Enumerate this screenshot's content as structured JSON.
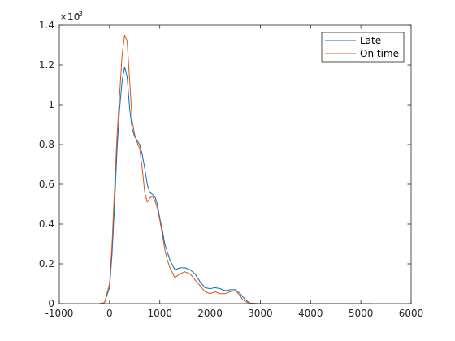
{
  "chart_data": {
    "type": "line",
    "title": "",
    "xlabel": "",
    "ylabel": "",
    "xlim": [
      -1000,
      6000
    ],
    "ylim": [
      0,
      0.0014
    ],
    "y_exponent_label": "×10",
    "y_exponent_power": "-3",
    "x_ticks": [
      {
        "value": -1000,
        "label": "-1000"
      },
      {
        "value": 0,
        "label": "0"
      },
      {
        "value": 1000,
        "label": "1000"
      },
      {
        "value": 2000,
        "label": "2000"
      },
      {
        "value": 3000,
        "label": "3000"
      },
      {
        "value": 4000,
        "label": "4000"
      },
      {
        "value": 5000,
        "label": "5000"
      },
      {
        "value": 6000,
        "label": "6000"
      }
    ],
    "y_ticks": [
      {
        "value": 0,
        "label": "0"
      },
      {
        "value": 0.0002,
        "label": "0.2"
      },
      {
        "value": 0.0004,
        "label": "0.4"
      },
      {
        "value": 0.0006,
        "label": "0.6"
      },
      {
        "value": 0.0008,
        "label": "0.8"
      },
      {
        "value": 0.001,
        "label": "1"
      },
      {
        "value": 0.0012,
        "label": "1.2"
      },
      {
        "value": 0.0014,
        "label": "1.4"
      }
    ],
    "grid": false,
    "legend_position": "top-right",
    "series": [
      {
        "name": "Late",
        "color": "#0072BD",
        "x": [
          -200,
          -100,
          0,
          50,
          100,
          150,
          200,
          250,
          300,
          350,
          400,
          450,
          500,
          550,
          600,
          650,
          700,
          750,
          800,
          850,
          900,
          950,
          1000,
          1050,
          1100,
          1150,
          1200,
          1300,
          1400,
          1500,
          1600,
          1700,
          1800,
          1900,
          2000,
          2100,
          2200,
          2300,
          2400,
          2500,
          2600,
          2650,
          2700,
          2750,
          2800,
          2900,
          3000,
          5200
        ],
        "y": [
          0,
          5e-06,
          8e-05,
          0.00025,
          0.0005,
          0.00078,
          0.00098,
          0.00112,
          0.00119,
          0.00114,
          0.00098,
          0.00088,
          0.00084,
          0.00082,
          0.0008,
          0.00075,
          0.00068,
          0.0006,
          0.00056,
          0.00055,
          0.00054,
          0.0005,
          0.00043,
          0.00037,
          0.0003,
          0.00026,
          0.00022,
          0.00017,
          0.00018,
          0.00018,
          0.00017,
          0.00015,
          0.00011,
          8e-05,
          7.5e-05,
          8e-05,
          7.5e-05,
          6.5e-05,
          7e-05,
          7e-05,
          5e-05,
          3.5e-05,
          2e-05,
          1e-05,
          3e-06,
          1e-06,
          0,
          0
        ]
      },
      {
        "name": "On time",
        "color": "#D95319",
        "x": [
          -200,
          -100,
          0,
          50,
          100,
          150,
          200,
          250,
          300,
          350,
          400,
          450,
          500,
          550,
          600,
          650,
          700,
          750,
          800,
          850,
          900,
          950,
          1000,
          1050,
          1100,
          1150,
          1200,
          1300,
          1400,
          1500,
          1600,
          1700,
          1800,
          1900,
          2000,
          2100,
          2200,
          2300,
          2400,
          2500,
          2600,
          2650,
          2700,
          2750,
          2800,
          2900,
          3000,
          5200
        ],
        "y": [
          0,
          5e-06,
          0.0001,
          0.0003,
          0.00058,
          0.00085,
          0.00105,
          0.00125,
          0.00135,
          0.00132,
          0.00112,
          0.00092,
          0.00085,
          0.00081,
          0.00078,
          0.00068,
          0.00056,
          0.00051,
          0.00053,
          0.00054,
          0.00052,
          0.00048,
          0.00042,
          0.00035,
          0.00027,
          0.00022,
          0.00018,
          0.00013,
          0.00015,
          0.00016,
          0.00015,
          0.00012,
          9e-05,
          6e-05,
          5e-05,
          6e-05,
          5e-05,
          5e-05,
          6e-05,
          6.5e-05,
          4e-05,
          2e-05,
          1e-05,
          5e-06,
          2e-06,
          1e-06,
          0,
          0
        ]
      }
    ]
  }
}
